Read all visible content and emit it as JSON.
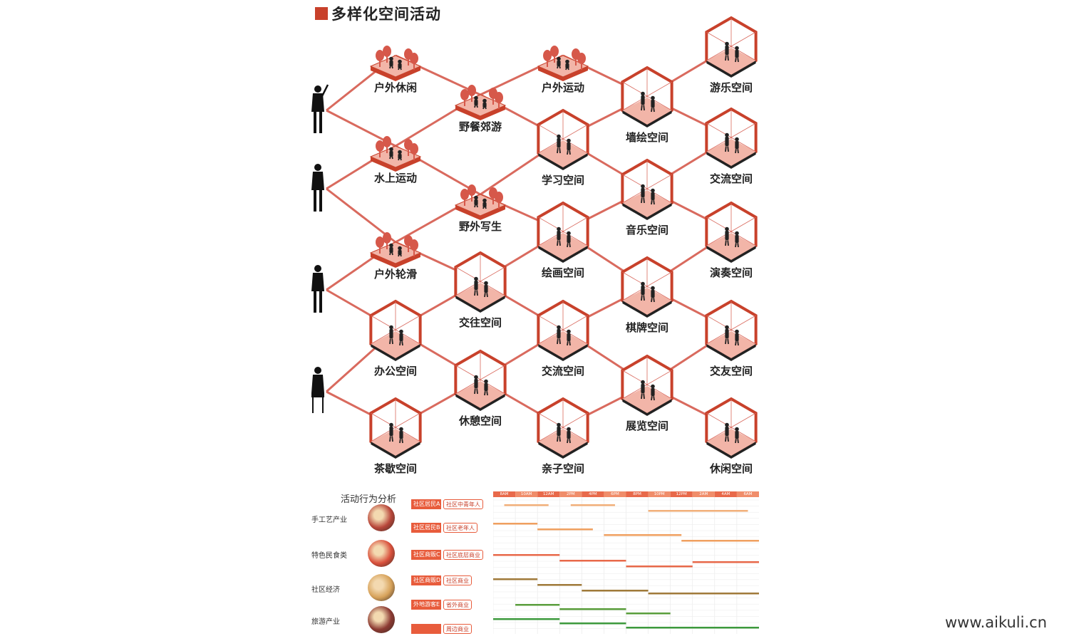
{
  "title": "多样化空间活动",
  "watermark": "www.aikuli.cn",
  "colors": {
    "accent": "#c8412b",
    "link": "#d96a5e",
    "fill": "#f2b5a8",
    "tree": "#d6584a"
  },
  "people": [
    "person-pointing",
    "person-standing",
    "person-slim",
    "person-seated"
  ],
  "nodes": [
    {
      "id": "outdoor-leisure",
      "label": "户外休闲",
      "kind": "plate"
    },
    {
      "id": "picnic",
      "label": "野餐郊游",
      "kind": "plate"
    },
    {
      "id": "outdoor-sports",
      "label": "户外运动",
      "kind": "plate"
    },
    {
      "id": "amusement",
      "label": "游乐空间",
      "kind": "room"
    },
    {
      "id": "water-sports",
      "label": "水上运动",
      "kind": "plate"
    },
    {
      "id": "study",
      "label": "学习空间",
      "kind": "room"
    },
    {
      "id": "mural",
      "label": "墙绘空间",
      "kind": "room"
    },
    {
      "id": "exchange-1",
      "label": "交流空间",
      "kind": "room"
    },
    {
      "id": "outdoor-sketch",
      "label": "野外写生",
      "kind": "plate"
    },
    {
      "id": "music",
      "label": "音乐空间",
      "kind": "room"
    },
    {
      "id": "skating",
      "label": "户外轮滑",
      "kind": "plate"
    },
    {
      "id": "painting",
      "label": "绘画空间",
      "kind": "room"
    },
    {
      "id": "performance",
      "label": "演奏空间",
      "kind": "room"
    },
    {
      "id": "social",
      "label": "交往空间",
      "kind": "room"
    },
    {
      "id": "chess",
      "label": "棋牌空间",
      "kind": "room"
    },
    {
      "id": "office",
      "label": "办公空间",
      "kind": "room"
    },
    {
      "id": "exchange-2",
      "label": "交流空间",
      "kind": "room"
    },
    {
      "id": "friends",
      "label": "交友空间",
      "kind": "room"
    },
    {
      "id": "rest",
      "label": "休憩空间",
      "kind": "room"
    },
    {
      "id": "exhibition",
      "label": "展览空间",
      "kind": "room"
    },
    {
      "id": "tea",
      "label": "茶歇空间",
      "kind": "room"
    },
    {
      "id": "parent-child",
      "label": "亲子空间",
      "kind": "room"
    },
    {
      "id": "leisure",
      "label": "休闲空间",
      "kind": "room"
    }
  ],
  "analysis": {
    "title": "活动行为分析",
    "industries": [
      {
        "label": "手工艺产业",
        "photo_color": "#b8463a"
      },
      {
        "label": "特色民食类",
        "photo_color": "#d9503c"
      },
      {
        "label": "社区经济",
        "photo_color": "#d7a25a"
      },
      {
        "label": "旅游产业",
        "photo_color": "#8c3a32"
      }
    ],
    "groups": [
      {
        "main": "社区居民A",
        "sub": "社区中青年人"
      },
      {
        "main": "社区居民B",
        "sub": "社区老年人"
      },
      {
        "main": "社区商贩C",
        "sub": "社区底层商业"
      },
      {
        "main": "社区商贩D",
        "sub": "社区商业"
      },
      {
        "main": "外地游客E",
        "sub": "省外商业"
      },
      {
        "main": "",
        "sub": "周边商业"
      }
    ],
    "time_headers": [
      "8AM",
      "10AM",
      "12AM",
      "2PM",
      "4PM",
      "6PM",
      "8PM",
      "10PM",
      "12PM",
      "2AM",
      "4AM",
      "6AM"
    ]
  }
}
